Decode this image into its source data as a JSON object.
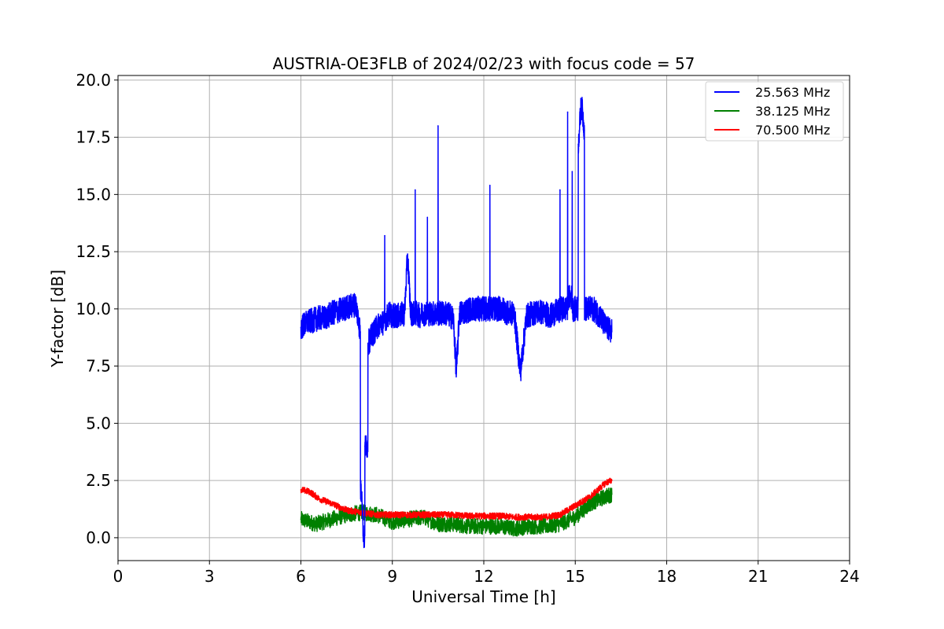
{
  "chart_data": {
    "type": "line",
    "title": "AUSTRIA-OE3FLB of 2024/02/23 with focus code = 57",
    "xlabel": "Universal Time [h]",
    "ylabel": "Y-factor [dB]",
    "xlim": [
      0,
      24
    ],
    "ylim": [
      -1.0,
      20.2
    ],
    "xticks": [
      0,
      3,
      6,
      9,
      12,
      15,
      18,
      21,
      24
    ],
    "xtick_labels": [
      "0",
      "3",
      "6",
      "9",
      "12",
      "15",
      "18",
      "21",
      "24"
    ],
    "yticks": [
      0.0,
      2.5,
      5.0,
      7.5,
      10.0,
      12.5,
      15.0,
      17.5,
      20.0
    ],
    "ytick_labels": [
      "0.0",
      "2.5",
      "5.0",
      "7.5",
      "10.0",
      "12.5",
      "15.0",
      "17.5",
      "20.0"
    ],
    "grid": true,
    "legend_position": "top-right",
    "series": [
      {
        "name": "25.563 MHz",
        "color": "#0000ff",
        "x": [
          6.0,
          6.2,
          6.4,
          6.6,
          6.8,
          7.0,
          7.2,
          7.4,
          7.6,
          7.8,
          7.95,
          8.0,
          8.05,
          8.1,
          8.2,
          8.4,
          8.6,
          8.75,
          8.8,
          8.9,
          9.0,
          9.2,
          9.4,
          9.5,
          9.6,
          9.75,
          9.8,
          9.9,
          10.0,
          10.15,
          10.2,
          10.4,
          10.5,
          10.6,
          10.8,
          11.0,
          11.1,
          11.2,
          11.4,
          11.6,
          11.8,
          12.0,
          12.2,
          12.4,
          12.6,
          12.8,
          13.0,
          13.2,
          13.4,
          13.6,
          13.8,
          14.0,
          14.2,
          14.4,
          14.5,
          14.6,
          14.75,
          14.8,
          14.9,
          15.0,
          15.1,
          15.2,
          15.3,
          15.4,
          15.6,
          15.8,
          16.0,
          16.2
        ],
        "values": [
          9.2,
          9.4,
          9.5,
          9.6,
          9.6,
          9.8,
          9.9,
          10.0,
          10.1,
          10.2,
          9.0,
          2.0,
          0.0,
          4.0,
          8.5,
          9.0,
          9.4,
          13.2,
          9.6,
          9.8,
          9.7,
          9.7,
          9.8,
          12.4,
          9.8,
          15.2,
          9.8,
          9.7,
          9.8,
          14.0,
          9.8,
          9.8,
          18.0,
          9.8,
          9.8,
          9.6,
          7.2,
          9.8,
          9.9,
          10.0,
          10.0,
          10.0,
          15.4,
          10.0,
          10.0,
          9.8,
          9.8,
          7.2,
          9.7,
          9.8,
          9.9,
          9.8,
          9.7,
          9.9,
          15.2,
          10.0,
          18.6,
          10.5,
          16.0,
          10.0,
          17.2,
          19.0,
          17.8,
          10.0,
          10.0,
          9.7,
          9.2,
          9.0
        ]
      },
      {
        "name": "38.125 MHz",
        "color": "#008000",
        "x": [
          6.0,
          6.5,
          7.0,
          7.5,
          8.0,
          8.5,
          9.0,
          9.5,
          10.0,
          10.5,
          11.0,
          11.5,
          12.0,
          12.5,
          13.0,
          13.5,
          14.0,
          14.5,
          15.0,
          15.5,
          16.0,
          16.2
        ],
        "values": [
          0.8,
          0.6,
          0.8,
          1.0,
          1.1,
          1.0,
          0.7,
          0.8,
          0.9,
          0.6,
          0.6,
          0.5,
          0.5,
          0.5,
          0.4,
          0.5,
          0.5,
          0.6,
          0.9,
          1.5,
          1.8,
          1.9
        ]
      },
      {
        "name": "70.500 MHz",
        "color": "#ff0000",
        "x": [
          6.0,
          6.3,
          6.6,
          7.0,
          7.5,
          8.0,
          8.5,
          9.0,
          9.5,
          10.0,
          10.5,
          11.0,
          11.5,
          12.0,
          12.5,
          13.0,
          13.5,
          14.0,
          14.5,
          15.0,
          15.5,
          16.0,
          16.2
        ],
        "values": [
          2.1,
          2.0,
          1.7,
          1.5,
          1.2,
          1.1,
          1.0,
          1.0,
          1.0,
          1.0,
          1.0,
          1.0,
          0.95,
          0.95,
          0.95,
          0.9,
          0.9,
          0.9,
          1.0,
          1.4,
          1.8,
          2.4,
          2.5
        ]
      }
    ]
  }
}
